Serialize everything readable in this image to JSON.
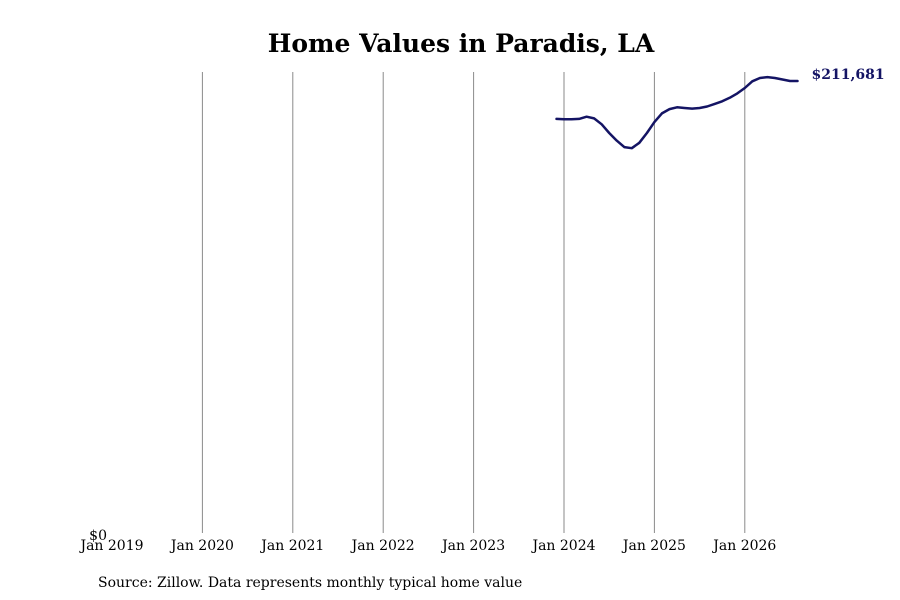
{
  "chart_data": {
    "type": "line",
    "title": "Home Values in Paradis, LA",
    "xlabel": "",
    "ylabel": "",
    "x_tick_labels": [
      "Jan 2019",
      "Jan 2020",
      "Jan 2021",
      "Jan 2022",
      "Jan 2023",
      "Jan 2024",
      "Jan 2025",
      "Jan 2026"
    ],
    "y_tick_labels": [
      "$0"
    ],
    "xlim": [
      "2019-01",
      "2026-09"
    ],
    "ylim": [
      0,
      211681
    ],
    "grid": "vertical",
    "line_color": "#141464",
    "end_label": "$211,681",
    "series": [
      {
        "x": [
          "2023-12",
          "2024-01",
          "2024-02",
          "2024-03",
          "2024-04",
          "2024-05",
          "2024-06",
          "2024-07",
          "2024-08",
          "2024-09",
          "2024-10",
          "2024-11",
          "2024-12",
          "2025-01",
          "2025-02",
          "2025-03",
          "2025-04",
          "2025-05",
          "2025-06",
          "2025-07",
          "2025-08",
          "2025-09",
          "2025-10",
          "2025-11",
          "2025-12",
          "2026-01",
          "2026-02",
          "2026-03",
          "2026-04",
          "2026-05",
          "2026-06",
          "2026-07",
          "2026-08"
        ],
        "values": [
          191500,
          191300,
          191300,
          191500,
          192500,
          191700,
          189000,
          185000,
          181500,
          178500,
          178000,
          180500,
          185000,
          190000,
          194000,
          196000,
          196800,
          196500,
          196200,
          196500,
          197200,
          198400,
          199600,
          201200,
          203200,
          205700,
          208800,
          210300,
          210700,
          210300,
          209600,
          208900,
          208900
        ]
      }
    ]
  },
  "footer": {
    "source": "Source: Zillow. Data represents monthly typical home value"
  }
}
